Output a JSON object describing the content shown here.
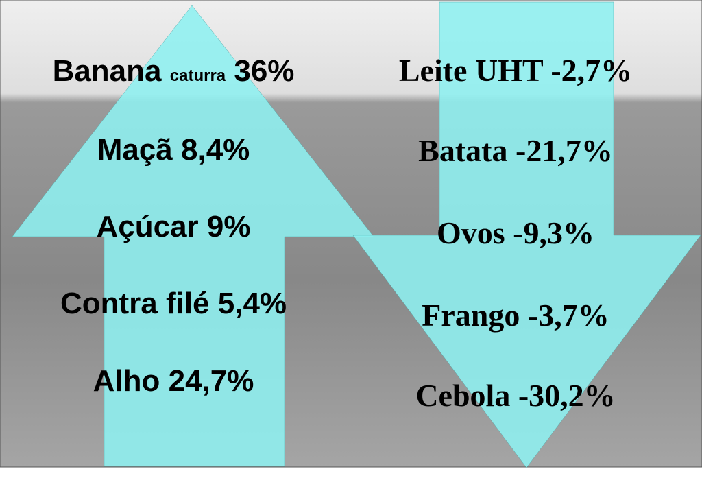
{
  "increases": [
    {
      "name": "Banana",
      "note": "caturra",
      "change": "36%"
    },
    {
      "name": "Maçã",
      "change": "8,4%"
    },
    {
      "name": "Açúcar",
      "change": "9%"
    },
    {
      "name": "Contra filé",
      "change": "5,4%"
    },
    {
      "name": "Alho",
      "change": "24,7%"
    }
  ],
  "decreases": [
    {
      "name": "Leite UHT",
      "change": "-2,7%"
    },
    {
      "name": "Batata",
      "change": "-21,7%"
    },
    {
      "name": "Ovos",
      "change": "-9,3%"
    },
    {
      "name": "Frango",
      "change": "-3,7%"
    },
    {
      "name": "Cebola",
      "change": "-30,2%"
    }
  ]
}
